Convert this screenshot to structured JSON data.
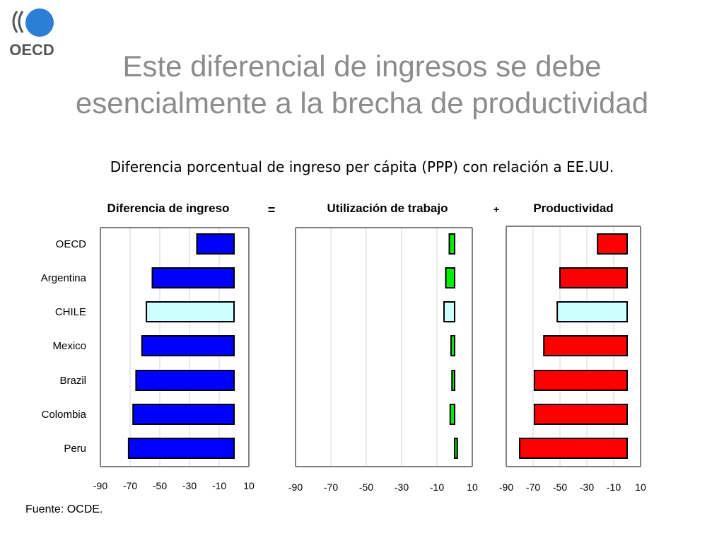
{
  "logo": {
    "text": "OECD",
    "brand_color": "#2b7fd4"
  },
  "title": {
    "line1": "Este diferencial de ingresos se debe",
    "line2": "esencialmente a la brecha de productividad"
  },
  "subtitle": "Diferencia porcentual de ingreso per cápita (PPP) con relación a EE.UU.",
  "equation": {
    "equals": "=",
    "plus": "+"
  },
  "source": "Fuente: OCDE.",
  "chart_data": [
    {
      "type": "bar",
      "orientation": "horizontal",
      "title": "Diferencia de ingreso",
      "categories": [
        "OECD",
        "Argentina",
        "CHILE",
        "Mexico",
        "Brazil",
        "Colombia",
        "Peru"
      ],
      "values": [
        -25,
        -55,
        -59,
        -62,
        -66,
        -68,
        -71
      ],
      "highlight": "CHILE",
      "colors": {
        "bar": "#0000ff",
        "highlight": "#ccffff"
      },
      "xlim": [
        -90,
        10
      ],
      "xticks": [
        -90,
        -70,
        -50,
        -30,
        -10,
        10
      ],
      "grid": true
    },
    {
      "type": "bar",
      "orientation": "horizontal",
      "title": "Utilización de trabajo",
      "categories": [
        "OECD",
        "Argentina",
        "CHILE",
        "Mexico",
        "Brazil",
        "Colombia",
        "Peru"
      ],
      "values": [
        -3,
        -5,
        -6,
        -2,
        -1.5,
        -2.5,
        1.5
      ],
      "highlight": "CHILE",
      "colors": {
        "bar": "#00ee00",
        "highlight": "#ccffff"
      },
      "xlim": [
        -90,
        10
      ],
      "xticks": [
        -90,
        -70,
        -50,
        -30,
        -10,
        10
      ],
      "grid": true
    },
    {
      "type": "bar",
      "orientation": "horizontal",
      "title": "Productividad",
      "categories": [
        "OECD",
        "Argentina",
        "CHILE",
        "Mexico",
        "Brazil",
        "Colombia",
        "Peru"
      ],
      "values": [
        -22,
        -50,
        -52,
        -62,
        -69,
        -69,
        -80
      ],
      "highlight": "CHILE",
      "colors": {
        "bar": "#ff0000",
        "highlight": "#ccffff"
      },
      "xlim": [
        -90,
        10
      ],
      "xticks": [
        -90,
        -70,
        -50,
        -30,
        -10,
        10
      ],
      "grid": true
    }
  ]
}
